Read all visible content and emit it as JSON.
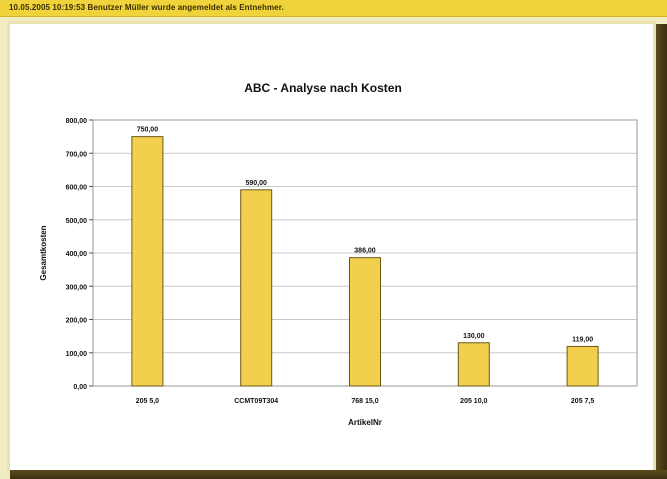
{
  "status_bar": {
    "message": "10.05.2005 10:19:53   Benutzer Müller wurde angemeldet als Entnehmer."
  },
  "colors": {
    "bar_fill": "#f2d04e",
    "bar_stroke": "#6b5a10",
    "status_bar": "#f0d23a",
    "page_background": "#f2ecc2"
  },
  "chart_data": {
    "type": "bar",
    "title": "ABC - Analyse nach Kosten",
    "xlabel": "ArtikelNr",
    "ylabel": "Gesamtkosten",
    "categories": [
      "205 5,0",
      "CCMT09T304",
      "768 15,0",
      "205 10,0",
      "205 7,5"
    ],
    "values": [
      750,
      590,
      386,
      130,
      119
    ],
    "value_labels": [
      "750,00",
      "590,00",
      "386,00",
      "130,00",
      "119,00"
    ],
    "yticks": [
      "0,00",
      "100,00",
      "200,00",
      "300,00",
      "400,00",
      "500,00",
      "600,00",
      "700,00",
      "800,00"
    ],
    "ylim": [
      0,
      800
    ],
    "grid": true,
    "legend": "none"
  }
}
